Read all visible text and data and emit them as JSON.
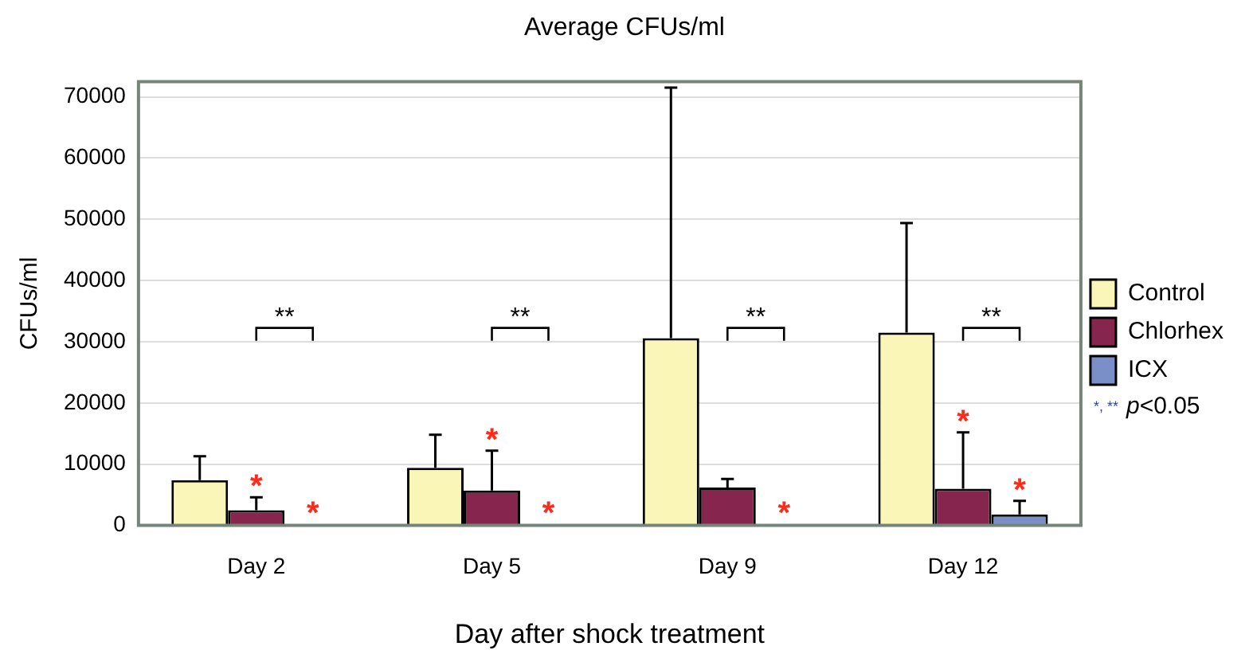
{
  "chart_data": {
    "type": "bar",
    "title": "Average CFUs/ml",
    "xlabel": "Day after shock treatment",
    "ylabel": "CFUs/ml",
    "categories": [
      "Day 2",
      "Day 5",
      "Day 9",
      "Day 12"
    ],
    "series": [
      {
        "name": "Control",
        "color": "#faf6b8",
        "values": [
          7400,
          9400,
          30600,
          31500
        ],
        "errors": [
          [
            7400,
            11300
          ],
          [
            9400,
            14800
          ],
          [
            30600,
            71500
          ],
          [
            31500,
            49400
          ]
        ]
      },
      {
        "name": "Chlorhex",
        "color": "#86264f",
        "values": [
          2500,
          5700,
          6200,
          6000
        ],
        "errors": [
          [
            2500,
            4600
          ],
          [
            5700,
            12200
          ],
          [
            6200,
            7600
          ],
          [
            6000,
            15200
          ]
        ],
        "value_labels": [
          "*",
          "*",
          null,
          "*"
        ]
      },
      {
        "name": "ICX",
        "color": "#7a8ec8",
        "values": [
          200,
          200,
          200,
          1800
        ],
        "errors": [
          null,
          null,
          null,
          [
            1800,
            4000
          ]
        ],
        "value_labels": [
          "*",
          "*",
          "*",
          "*"
        ]
      }
    ],
    "ylim": [
      0,
      72500
    ],
    "yticks": [
      0,
      10000,
      20000,
      30000,
      40000,
      50000,
      60000,
      70000
    ],
    "grid": "y",
    "legend": "right",
    "annotations": [
      "**",
      "**",
      "**",
      "**",
      "*, ** p<0.05"
    ]
  }
}
